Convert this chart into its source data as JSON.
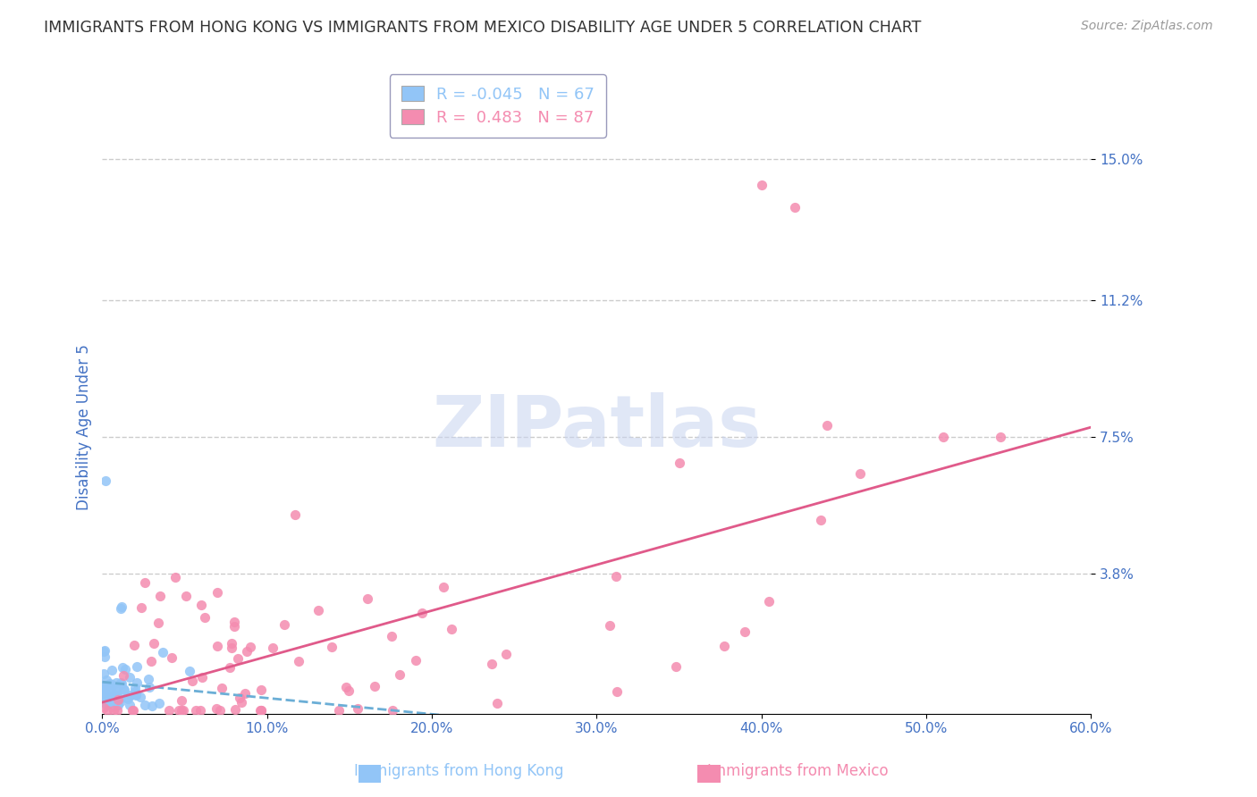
{
  "title": "IMMIGRANTS FROM HONG KONG VS IMMIGRANTS FROM MEXICO DISABILITY AGE UNDER 5 CORRELATION CHART",
  "source": "Source: ZipAtlas.com",
  "ylabel": "Disability Age Under 5",
  "legend_label_1": "Immigrants from Hong Kong",
  "legend_label_2": "Immigrants from Mexico",
  "R1": -0.045,
  "N1": 67,
  "R2": 0.483,
  "N2": 87,
  "color1": "#92c5f7",
  "color2": "#f48cb0",
  "line_color1": "#6baed6",
  "line_color2": "#e05a8a",
  "xlim": [
    0.0,
    0.6
  ],
  "ylim": [
    0.0,
    0.155
  ],
  "yticks": [
    0.038,
    0.075,
    0.112,
    0.15
  ],
  "ytick_labels": [
    "3.8%",
    "7.5%",
    "11.2%",
    "15.0%"
  ],
  "xticks": [
    0.0,
    0.1,
    0.2,
    0.3,
    0.4,
    0.5,
    0.6
  ],
  "xtick_labels": [
    "0.0%",
    "10.0%",
    "20.0%",
    "30.0%",
    "40.0%",
    "50.0%",
    "60.0%"
  ],
  "watermark": "ZIPatlas",
  "background_color": "#ffffff",
  "grid_color": "#cccccc",
  "title_color": "#333333",
  "axis_label_color": "#4472c4"
}
